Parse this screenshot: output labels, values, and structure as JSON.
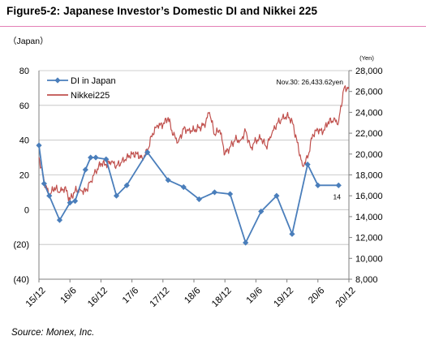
{
  "title": "Figure5-2: Japanese Investor’s Domestic DI and Nikkei 225",
  "left_unit": "（Japan）",
  "source": "Source: Monex, Inc.",
  "chart_data": {
    "type": "line",
    "title": "Figure5-2: Japanese Investor’s Domestic DI and Nikkei 225",
    "xlabel": "",
    "ylabel_left": "（Japan）",
    "ylabel_right": "(Yen)",
    "x_ticks": [
      "15/12",
      "16/6",
      "16/12",
      "17/6",
      "17/12",
      "18/6",
      "18/12",
      "19/6",
      "19/12",
      "20/6",
      "20/12"
    ],
    "x_range": [
      "2015-12",
      "2020-12"
    ],
    "y_left_range": [
      -40,
      80
    ],
    "y_left_ticks": [
      "(40)",
      "(20)",
      "0",
      "20",
      "40",
      "60",
      "80"
    ],
    "y_right_range": [
      8000,
      28000
    ],
    "y_right_ticks": [
      "8,000",
      "10,000",
      "12,000",
      "14,000",
      "16,000",
      "18,000",
      "20,000",
      "22,000",
      "24,000",
      "26,000",
      "28,000"
    ],
    "grid": "horizontal",
    "legend": "top-left",
    "series": [
      {
        "name": "DI in Japan",
        "axis": "left",
        "color": "#4a7ebb",
        "marker": "diamond",
        "x": [
          "2015-12",
          "2016-01",
          "2016-02",
          "2016-04",
          "2016-06",
          "2016-07",
          "2016-09",
          "2016-10",
          "2016-11",
          "2017-01",
          "2017-03",
          "2017-05",
          "2017-09",
          "2018-01",
          "2018-04",
          "2018-07",
          "2018-10",
          "2019-01",
          "2019-04",
          "2019-07",
          "2019-10",
          "2020-01",
          "2020-04",
          "2020-06",
          "2020-10"
        ],
        "values": [
          37,
          15,
          8,
          -6,
          4,
          5,
          23,
          30,
          30,
          29,
          8,
          14,
          33,
          17,
          13,
          6,
          10,
          9,
          -19,
          -1,
          8,
          -14,
          26,
          14,
          14
        ],
        "data_labels": {
          "2020-10": "14"
        }
      },
      {
        "name": "Nikkei225",
        "axis": "right",
        "color": "#c0504d",
        "x": [
          "2015-12",
          "2016-01",
          "2016-02",
          "2016-03",
          "2016-04",
          "2016-05",
          "2016-06",
          "2016-07",
          "2016-08",
          "2016-09",
          "2016-10",
          "2016-11",
          "2016-12",
          "2017-01",
          "2017-02",
          "2017-03",
          "2017-04",
          "2017-05",
          "2017-06",
          "2017-07",
          "2017-08",
          "2017-09",
          "2017-10",
          "2017-11",
          "2017-12",
          "2018-01",
          "2018-02",
          "2018-03",
          "2018-04",
          "2018-05",
          "2018-06",
          "2018-07",
          "2018-08",
          "2018-09",
          "2018-10",
          "2018-11",
          "2018-12",
          "2019-01",
          "2019-02",
          "2019-03",
          "2019-04",
          "2019-05",
          "2019-06",
          "2019-07",
          "2019-08",
          "2019-09",
          "2019-10",
          "2019-11",
          "2019-12",
          "2020-01",
          "2020-02",
          "2020-03",
          "2020-04",
          "2020-05",
          "2020-06",
          "2020-07",
          "2020-08",
          "2020-09",
          "2020-10",
          "2020-11",
          "2020-11-30"
        ],
        "values": [
          19700,
          17400,
          16000,
          16800,
          16300,
          16800,
          15600,
          16500,
          16600,
          16400,
          17400,
          18300,
          19100,
          19000,
          19200,
          18900,
          19200,
          19700,
          20000,
          20000,
          19600,
          20300,
          22000,
          22700,
          22800,
          23500,
          21800,
          21200,
          22400,
          22300,
          22300,
          22500,
          22800,
          24000,
          21900,
          22300,
          20000,
          20700,
          21400,
          21300,
          22200,
          20600,
          21300,
          21500,
          20700,
          21800,
          22900,
          23300,
          23700,
          23200,
          21100,
          18900,
          19600,
          21900,
          22300,
          22100,
          23100,
          23200,
          23100,
          26200,
          26433.62
        ],
        "annotation": "Nov.30: 26,433.62yen"
      }
    ]
  }
}
